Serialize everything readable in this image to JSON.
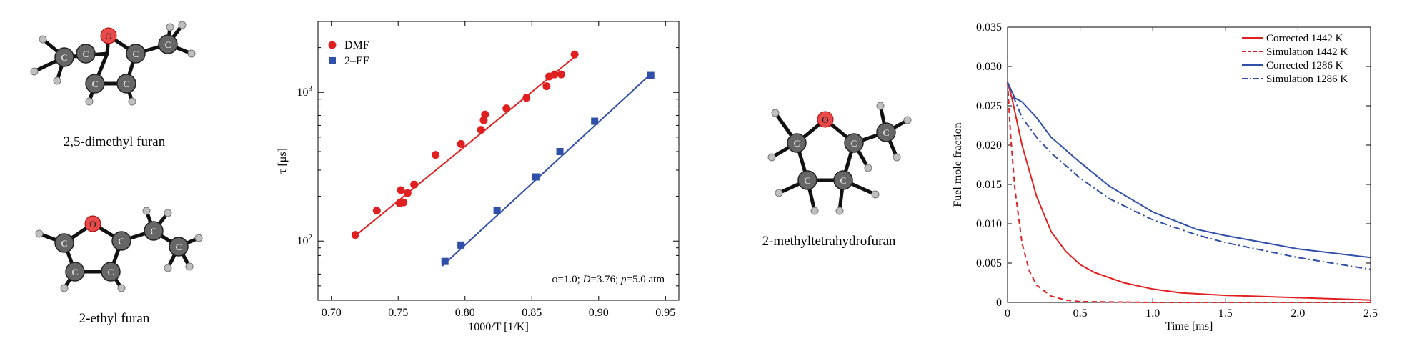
{
  "molecules": [
    {
      "id": "dmf",
      "caption": "2,5-dimethyl furan"
    },
    {
      "id": "ef",
      "caption": "2-ethyl furan"
    },
    {
      "id": "mthf",
      "caption": "2-methyltetrahydrofuran"
    }
  ],
  "atom_labels": {
    "carbon": "C",
    "oxygen": "O"
  },
  "colors": {
    "red": "#e02020",
    "blue": "#2f4fa8",
    "carbon": "#555555",
    "oxygen": "#e84a4a",
    "hydrogen": "#bfbfbf"
  },
  "chart_data": [
    {
      "type": "scatter",
      "xlabel": "1000/T [1/K]",
      "ylabel": "τ [μs]",
      "xlim": [
        0.69,
        0.96
      ],
      "ylim": [
        40,
        3000
      ],
      "yscale": "log",
      "xticks": [
        "0.70",
        "0.75",
        "0.80",
        "0.85",
        "0.90",
        "0.95"
      ],
      "yticks": [
        {
          "value": 100,
          "label": "10²"
        },
        {
          "value": 1000,
          "label": "10³"
        }
      ],
      "legend_position": "top-left",
      "annotation": "ϕ=1.0; D=3.76; p=5.0 atm",
      "series": [
        {
          "name": "DMF",
          "color": "#e02020",
          "marker": "circle",
          "x": [
            0.718,
            0.734,
            0.751,
            0.752,
            0.754,
            0.757,
            0.762,
            0.778,
            0.797,
            0.812,
            0.814,
            0.815,
            0.831,
            0.846,
            0.861,
            0.863,
            0.867,
            0.872,
            0.882
          ],
          "y": [
            110,
            160,
            180,
            220,
            182,
            210,
            240,
            380,
            450,
            560,
            650,
            710,
            780,
            920,
            1100,
            1280,
            1320,
            1320,
            1800
          ],
          "fit": {
            "x": [
              0.716,
              0.885
            ],
            "y": [
              105,
              1820
            ]
          }
        },
        {
          "name": "2–EF",
          "color": "#2f4fa8",
          "marker": "square",
          "x": [
            0.785,
            0.797,
            0.824,
            0.853,
            0.871,
            0.897,
            0.939
          ],
          "y": [
            73,
            94,
            160,
            270,
            400,
            640,
            1300
          ],
          "fit": {
            "x": [
              0.783,
              0.939
            ],
            "y": [
              68,
              1330
            ]
          }
        }
      ]
    },
    {
      "type": "line",
      "xlabel": "Time [ms]",
      "ylabel": "Fuel mole fraction",
      "xlim": [
        0,
        2.5
      ],
      "ylim": [
        0,
        0.035
      ],
      "xticks": [
        "0",
        "0.5",
        "1.0",
        "1.5",
        "2.0",
        "2.5"
      ],
      "yticks": [
        "0",
        "0.005",
        "0.010",
        "0.015",
        "0.020",
        "0.025",
        "0.030",
        "0.035"
      ],
      "legend_position": "top-right",
      "series": [
        {
          "name": "Corrected  1442 K",
          "color": "#e02020",
          "style": "solid",
          "x": [
            0,
            0.03,
            0.1,
            0.2,
            0.3,
            0.4,
            0.5,
            0.6,
            0.8,
            1.0,
            1.2,
            1.5,
            2.0,
            2.5
          ],
          "y": [
            0.028,
            0.026,
            0.02,
            0.0135,
            0.009,
            0.0065,
            0.0048,
            0.0038,
            0.0025,
            0.0017,
            0.0012,
            0.0009,
            0.0006,
            0.0003
          ]
        },
        {
          "name": "Simulation 1442 K",
          "color": "#e02020",
          "style": "dashed",
          "x": [
            0,
            0.02,
            0.05,
            0.1,
            0.15,
            0.2,
            0.3,
            0.4,
            0.5,
            1.0,
            2.5
          ],
          "y": [
            0.028,
            0.0215,
            0.0145,
            0.0075,
            0.004,
            0.0022,
            0.0008,
            0.0003,
            0.0001,
            0,
            0
          ]
        },
        {
          "name": "Corrected  1286 K",
          "color": "#2f4fa8",
          "style": "solid",
          "x": [
            0,
            0.05,
            0.1,
            0.2,
            0.3,
            0.5,
            0.7,
            1.0,
            1.3,
            1.5,
            2.0,
            2.5
          ],
          "y": [
            0.028,
            0.026,
            0.0255,
            0.0235,
            0.021,
            0.0178,
            0.0148,
            0.0115,
            0.0093,
            0.0085,
            0.0068,
            0.0057
          ]
        },
        {
          "name": "Simulation 1286 K",
          "color": "#2f4fa8",
          "style": "dashdot",
          "x": [
            0,
            0.1,
            0.2,
            0.3,
            0.5,
            0.7,
            1.0,
            1.3,
            1.5,
            2.0,
            2.5
          ],
          "y": [
            0.028,
            0.0235,
            0.021,
            0.019,
            0.0158,
            0.0132,
            0.0105,
            0.0086,
            0.0076,
            0.0057,
            0.0042
          ]
        }
      ]
    }
  ]
}
